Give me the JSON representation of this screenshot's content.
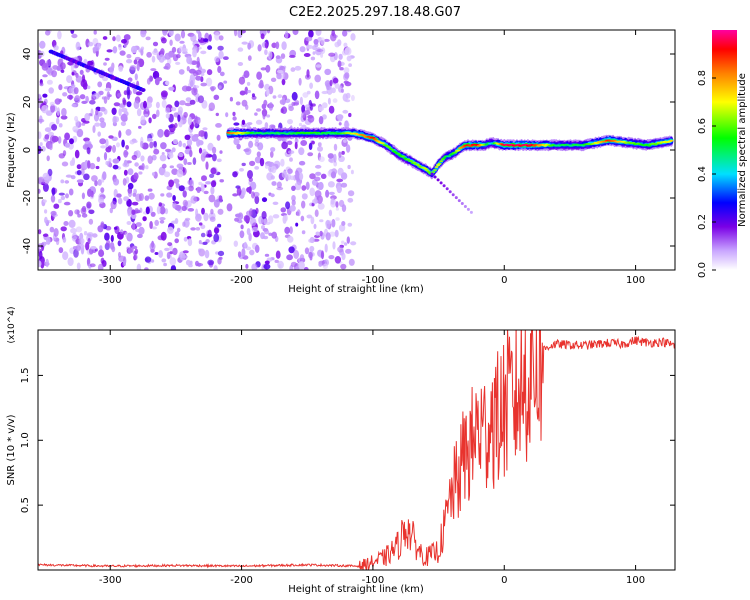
{
  "title": "C2E2.2025.297.18.48.G07",
  "chart_data": [
    {
      "type": "heatmap",
      "xlabel": "Height of straight line (km)",
      "ylabel": "Frequency (Hz)",
      "xlim": [
        -355,
        130
      ],
      "ylim": [
        -50,
        50
      ],
      "xticks": [
        -300,
        -200,
        -100,
        0,
        100
      ],
      "yticks": [
        -40,
        -20,
        0,
        20,
        40
      ],
      "colorbar": {
        "label": "Normalized spectral amplitude",
        "range": [
          0,
          1
        ],
        "ticks": [
          "0.0",
          "0.2",
          "0.4",
          "0.6",
          "0.8"
        ],
        "colors": [
          "#ffffff",
          "#c9a6ff",
          "#7a00e6",
          "#0000ff",
          "#00e0ff",
          "#00ff00",
          "#ffff00",
          "#ff8000",
          "#ff0000",
          "#ff00a0"
        ]
      },
      "ridge": {
        "x": [
          -210,
          -190,
          -170,
          -150,
          -130,
          -115,
          -100,
          -90,
          -80,
          -70,
          -60,
          -55,
          -50,
          -45,
          -40,
          -30,
          -20,
          -15,
          -10,
          0,
          20,
          40,
          60,
          80,
          95,
          110,
          128
        ],
        "y": [
          7,
          7,
          7,
          7,
          7,
          7,
          5,
          2,
          -2,
          -5,
          -8,
          -10,
          -6,
          -3,
          -2,
          2,
          2,
          2,
          3,
          2,
          2,
          2,
          2,
          4,
          3,
          2,
          4
        ],
        "amplitude": [
          0.85,
          0.5,
          0.5,
          0.55,
          0.5,
          0.7,
          0.9,
          0.6,
          0.55,
          0.6,
          0.65,
          0.6,
          0.7,
          0.5,
          0.5,
          0.9,
          0.9,
          0.6,
          0.4,
          0.95,
          0.95,
          0.5,
          0.5,
          0.9,
          0.6,
          0.55,
          0.75
        ]
      },
      "noise_region_x": [
        -355,
        -115
      ],
      "noise_gap_x": [
        -215,
        -205
      ]
    },
    {
      "type": "line",
      "xlabel": "Height of straight line (km)",
      "ylabel": "SNR (10 * v/v)",
      "y_multiplier": "(x10^4)",
      "xlim": [
        -355,
        130
      ],
      "ylim": [
        0,
        18500
      ],
      "xticks": [
        -300,
        -200,
        -100,
        0,
        100
      ],
      "yticks": [
        0.5,
        1.0,
        1.5
      ],
      "ytick_labels": [
        "0.5",
        "1.0",
        "1.5"
      ],
      "series": [
        {
          "color": "#e8332e",
          "x": [
            -355,
            -300,
            -250,
            -200,
            -150,
            -110,
            -100,
            -90,
            -80,
            -75,
            -70,
            -65,
            -60,
            -55,
            -50,
            -45,
            -40,
            -35,
            -30,
            -25,
            -20,
            -15,
            -10,
            -5,
            0,
            5,
            10,
            15,
            20,
            25,
            30,
            35,
            40,
            60,
            80,
            90,
            100,
            110,
            120,
            130
          ],
          "y": [
            400,
            300,
            350,
            300,
            400,
            300,
            600,
            1000,
            2000,
            3500,
            2500,
            1500,
            1000,
            1200,
            1500,
            3500,
            6000,
            7000,
            9000,
            9500,
            11000,
            10500,
            12000,
            11500,
            12500,
            13000,
            13500,
            14500,
            15500,
            16200,
            17000,
            17300,
            17400,
            17300,
            17500,
            17400,
            17700,
            17500,
            17600,
            17300
          ]
        }
      ]
    }
  ]
}
